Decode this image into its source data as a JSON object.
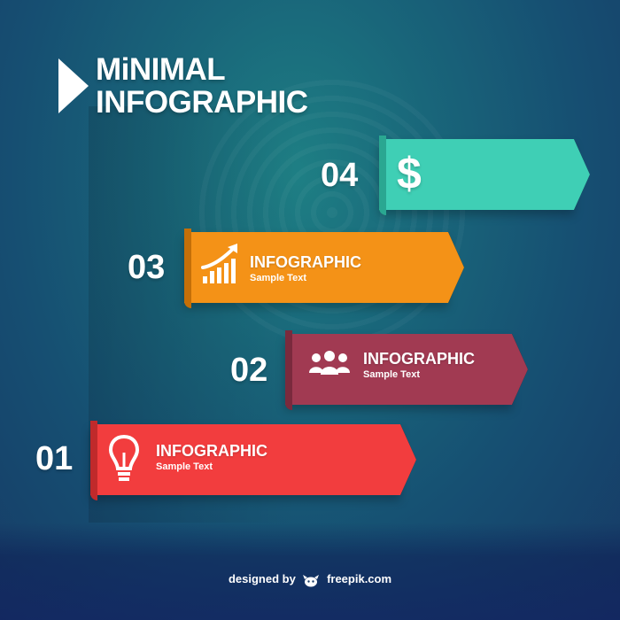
{
  "title": {
    "line1": "MiNIMAL",
    "line2": "INFOGRAPHIC"
  },
  "steps": [
    {
      "number": "04",
      "icon": "dollar-icon",
      "symbol": "$",
      "color": "#3fcfb5",
      "fold": "#2aa791"
    },
    {
      "number": "03",
      "icon": "growth-chart-icon",
      "label": "INFOGRAPHIC",
      "sub": "Sample Text",
      "color": "#f49217",
      "fold": "#c46f08"
    },
    {
      "number": "02",
      "icon": "people-group-icon",
      "label": "INFOGRAPHIC",
      "sub": "Sample Text",
      "color": "#a13a52",
      "fold": "#7a2a3d"
    },
    {
      "number": "01",
      "icon": "lightbulb-icon",
      "label": "INFOGRAPHIC",
      "sub": "Sample Text",
      "color": "#f23d3e",
      "fold": "#c02a2b"
    }
  ],
  "credit": {
    "prefix": "designed by",
    "brand": "freepik.com"
  }
}
